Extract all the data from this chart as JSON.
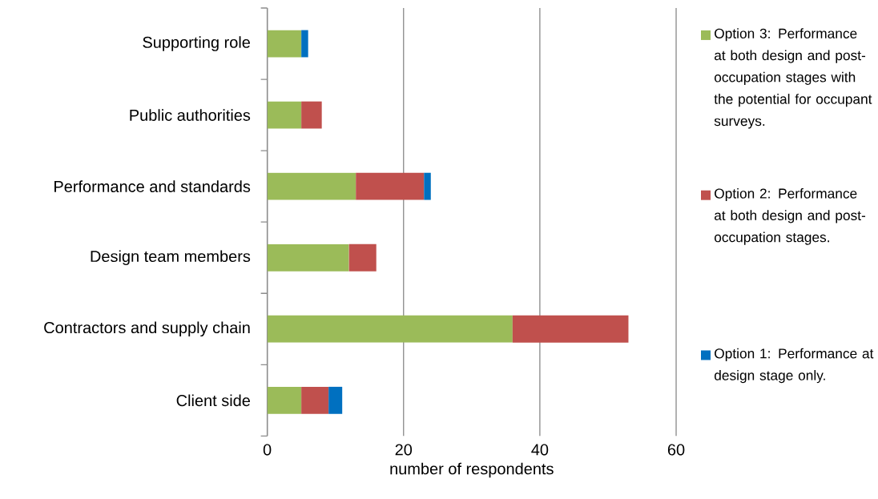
{
  "chart_data": {
    "type": "bar",
    "orientation": "horizontal",
    "stacked": true,
    "categories": [
      "Supporting role",
      "Public authorities",
      "Performance and standards",
      "Design team members",
      "Contractors and supply chain",
      "Client side"
    ],
    "series": [
      {
        "name": "Option 3: Performance at both design and post-occupation stages with the potential for occupant surveys.",
        "color": "#9bbb59",
        "values": [
          5,
          5,
          13,
          12,
          36,
          5
        ]
      },
      {
        "name": "Option 2: Performance at both design and post-occupation stages.",
        "color": "#c0504d",
        "values": [
          0,
          3,
          10,
          4,
          17,
          4
        ]
      },
      {
        "name": "Option 1: Performance at design stage only.",
        "color": "#0070c0",
        "values": [
          1,
          0,
          1,
          0,
          0,
          2
        ]
      }
    ],
    "xlabel": "number of respondents",
    "xlim": [
      0,
      60
    ],
    "xticks": [
      0,
      20,
      40,
      60
    ],
    "grid": "x",
    "legend": "right"
  }
}
